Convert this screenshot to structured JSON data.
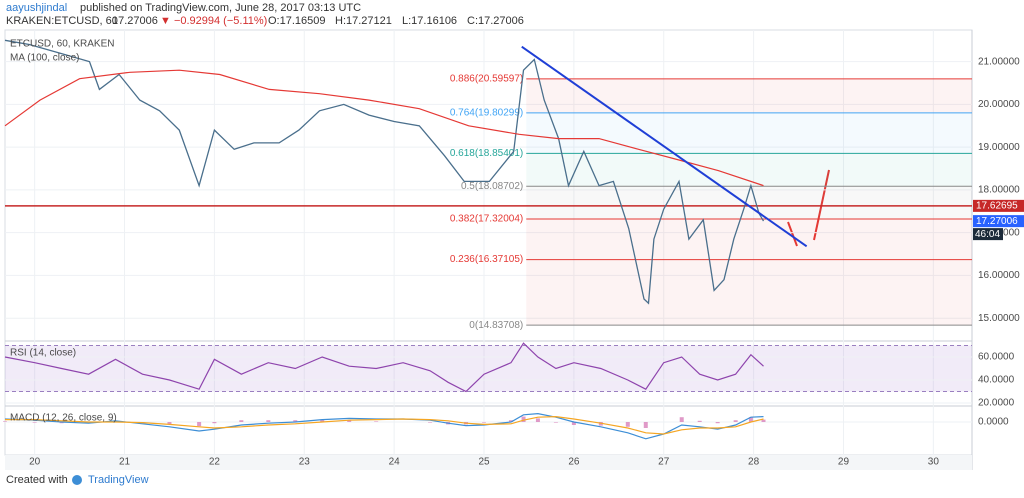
{
  "header": {
    "author": "aayushjindal",
    "published": "published on TradingView.com, June 28, 2017 03:13 UTC",
    "symbol": "KRAKEN:ETCUSD, 60",
    "last": "17.27006",
    "change": "▼ −0.92994 (−5.11%)",
    "open": "O:17.16509",
    "high": "H:17.27121",
    "low": "L:17.16106",
    "close": "C:17.27006"
  },
  "chart_data": [
    {
      "type": "line",
      "xlim": [
        19.67,
        30.43
      ],
      "xticks": [
        20,
        21,
        22,
        23,
        24,
        25,
        26,
        27,
        28,
        29,
        30
      ],
      "ylim": [
        14.49,
        21.74
      ],
      "yticks": [
        {
          "value": 15,
          "label": "15.00000"
        },
        {
          "value": 16,
          "label": "16.00000"
        },
        {
          "value": 17,
          "label": "17.00000"
        },
        {
          "value": 18,
          "label": "18.00000"
        },
        {
          "value": 19,
          "label": "19.00000"
        },
        {
          "value": 20,
          "label": "20.00000"
        },
        {
          "value": 21,
          "label": "21.00000"
        }
      ],
      "grid": true,
      "series": [
        {
          "name": "ETCUSD, 60, KRAKEN",
          "color": "#4a6f8c",
          "x": [
            19.67,
            19.94,
            20.28,
            20.61,
            20.72,
            20.94,
            21.17,
            21.39,
            21.61,
            21.83,
            22.0,
            22.22,
            22.44,
            22.72,
            22.94,
            23.17,
            23.44,
            23.72,
            24.0,
            24.28,
            24.56,
            24.78,
            25.06,
            25.33,
            25.44,
            25.56,
            25.67,
            25.83,
            25.94,
            26.11,
            26.28,
            26.44,
            26.61,
            26.78,
            26.83,
            26.89,
            27.0,
            27.17,
            27.28,
            27.44,
            27.56,
            27.67,
            27.78,
            27.89,
            27.97,
            28.06,
            28.11
          ],
          "values": [
            21.5,
            21.4,
            21.2,
            21.0,
            20.35,
            20.7,
            20.1,
            19.85,
            19.4,
            18.1,
            19.4,
            18.95,
            19.1,
            19.1,
            19.4,
            19.85,
            20.0,
            19.75,
            19.6,
            19.5,
            18.8,
            18.2,
            18.2,
            18.9,
            20.8,
            21.05,
            20.1,
            19.2,
            18.1,
            18.9,
            18.1,
            18.2,
            17.1,
            15.45,
            15.35,
            16.85,
            17.55,
            18.2,
            16.85,
            17.3,
            15.65,
            15.9,
            16.85,
            17.55,
            18.1,
            17.45,
            17.27
          ]
        },
        {
          "name": "MA (100, close)",
          "color": "#e53935",
          "x": [
            19.67,
            20.06,
            20.5,
            21.06,
            21.61,
            22.06,
            22.61,
            23.17,
            23.72,
            24.28,
            24.83,
            25.39,
            25.83,
            26.28,
            26.72,
            27.17,
            27.61,
            28.11
          ],
          "values": [
            19.5,
            20.1,
            20.6,
            20.75,
            20.8,
            20.7,
            20.35,
            20.25,
            20.1,
            19.9,
            19.5,
            19.3,
            19.2,
            19.2,
            18.95,
            18.7,
            18.45,
            18.1
          ]
        }
      ],
      "fib_start": 25.47,
      "fib_levels": [
        {
          "label": "0.886(20.59597)",
          "value": 20.59597,
          "color": "#e53935"
        },
        {
          "label": "0.764(19.80299)",
          "value": 19.80299,
          "color": "#42a5f5"
        },
        {
          "label": "0.618(18.85401)",
          "value": 18.85401,
          "color": "#26a69a"
        },
        {
          "label": "0.5(18.08702)",
          "value": 18.08702,
          "color": "#888888"
        },
        {
          "label": "0.382(17.32004)",
          "value": 17.32004,
          "color": "#e53935"
        },
        {
          "label": "0.236(16.37105)",
          "value": 16.37105,
          "color": "#e53935"
        },
        {
          "label": "0(14.83708)",
          "value": 14.83708,
          "color": "#888888"
        }
      ],
      "hline": {
        "value": 17.62695,
        "color": "#c62828"
      },
      "last_price": {
        "value": 17.27006,
        "color": "#2962ff"
      },
      "countdown": "46:04",
      "trendline": {
        "x": [
          25.42,
          28.59
        ],
        "y": [
          21.35,
          16.68
        ],
        "color": "#1f3fd6"
      }
    },
    {
      "type": "line",
      "title": "RSI (14, close)",
      "ylim": [
        18.3,
        73.0
      ],
      "yticks": [
        {
          "value": 20,
          "label": "20.0000"
        },
        {
          "value": 40,
          "label": "40.0000"
        },
        {
          "value": 60,
          "label": "60.0000"
        }
      ],
      "band": [
        30,
        70
      ],
      "series": [
        {
          "color": "#8e44ad",
          "x": [
            19.67,
            20.0,
            20.3,
            20.6,
            20.9,
            21.2,
            21.5,
            21.83,
            22.0,
            22.3,
            22.6,
            22.9,
            23.2,
            23.5,
            23.8,
            24.1,
            24.4,
            24.6,
            24.8,
            25.0,
            25.3,
            25.44,
            25.6,
            25.8,
            26.0,
            26.3,
            26.6,
            26.8,
            27.0,
            27.2,
            27.4,
            27.6,
            27.8,
            27.97,
            28.11
          ],
          "values": [
            60,
            55,
            50,
            45,
            58,
            45,
            40,
            32,
            58,
            45,
            55,
            50,
            60,
            52,
            50,
            55,
            48,
            38,
            30,
            45,
            55,
            72,
            60,
            50,
            55,
            50,
            40,
            32,
            55,
            60,
            45,
            40,
            45,
            62,
            52
          ]
        }
      ]
    },
    {
      "type": "line",
      "title": "MACD (12, 26, close, 9)",
      "ylim": [
        -0.55,
        0.25
      ],
      "yticks": [
        {
          "value": 0,
          "label": "0.0000"
        }
      ],
      "x": [
        19.67,
        20.0,
        20.3,
        20.6,
        20.9,
        21.2,
        21.5,
        21.83,
        22.0,
        22.3,
        22.6,
        22.9,
        23.2,
        23.5,
        23.8,
        24.1,
        24.4,
        24.6,
        24.8,
        25.0,
        25.3,
        25.44,
        25.6,
        25.8,
        26.0,
        26.3,
        26.6,
        26.8,
        27.0,
        27.2,
        27.4,
        27.6,
        27.8,
        27.97,
        28.11
      ],
      "histogram": {
        "color": "#d36fb0",
        "values": [
          0.01,
          -0.01,
          -0.02,
          -0.02,
          0.02,
          -0.02,
          -0.04,
          -0.07,
          -0.02,
          0.03,
          0.03,
          0.03,
          0.04,
          0.03,
          0.01,
          0,
          -0.01,
          -0.04,
          -0.04,
          -0.01,
          0.03,
          0.09,
          0.06,
          -0.01,
          -0.05,
          -0.06,
          -0.08,
          -0.1,
          0,
          0.08,
          0.02,
          -0.02,
          0.03,
          0.08,
          0.04
        ]
      },
      "series": [
        {
          "color": "#3d8ed6",
          "values": [
            0.05,
            0.03,
            0.0,
            -0.02,
            0.02,
            -0.03,
            -0.08,
            -0.15,
            -0.12,
            -0.05,
            -0.02,
            0.0,
            0.04,
            0.06,
            0.05,
            0.05,
            0.03,
            -0.02,
            -0.06,
            -0.05,
            0.0,
            0.12,
            0.14,
            0.08,
            0.0,
            -0.08,
            -0.18,
            -0.28,
            -0.2,
            -0.05,
            -0.08,
            -0.12,
            -0.05,
            0.08,
            0.09
          ]
        },
        {
          "color": "#f5a623",
          "values": [
            0.04,
            0.04,
            0.02,
            0.0,
            0.0,
            -0.01,
            -0.04,
            -0.08,
            -0.1,
            -0.08,
            -0.05,
            -0.03,
            0.0,
            0.03,
            0.04,
            0.05,
            0.04,
            0.02,
            -0.02,
            -0.04,
            -0.03,
            0.03,
            0.08,
            0.09,
            0.05,
            -0.02,
            -0.1,
            -0.18,
            -0.2,
            -0.13,
            -0.1,
            -0.1,
            -0.08,
            0.0,
            0.05
          ]
        }
      ]
    }
  ],
  "footer": {
    "created": "Created with",
    "brand": "TradingView"
  }
}
